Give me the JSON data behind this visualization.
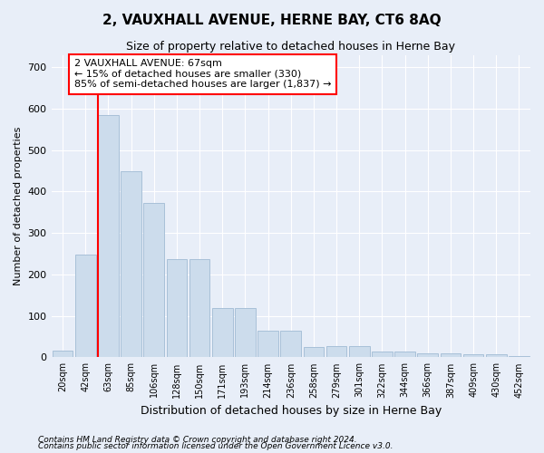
{
  "title": "2, VAUXHALL AVENUE, HERNE BAY, CT6 8AQ",
  "subtitle": "Size of property relative to detached houses in Herne Bay",
  "xlabel": "Distribution of detached houses by size in Herne Bay",
  "ylabel": "Number of detached properties",
  "categories": [
    "20sqm",
    "42sqm",
    "63sqm",
    "85sqm",
    "106sqm",
    "128sqm",
    "150sqm",
    "171sqm",
    "193sqm",
    "214sqm",
    "236sqm",
    "258sqm",
    "279sqm",
    "301sqm",
    "322sqm",
    "344sqm",
    "366sqm",
    "387sqm",
    "409sqm",
    "430sqm",
    "452sqm"
  ],
  "values": [
    17,
    248,
    585,
    450,
    372,
    238,
    238,
    118,
    118,
    65,
    65,
    25,
    28,
    28,
    13,
    13,
    10,
    10,
    8,
    8,
    4
  ],
  "bar_color": "#ccdcec",
  "bar_edge_color": "#a8c0d8",
  "vline_color": "red",
  "vline_index": 2,
  "annotation_text_line1": "2 VAUXHALL AVENUE: 67sqm",
  "annotation_text_line2": "← 15% of detached houses are smaller (330)",
  "annotation_text_line3": "85% of semi-detached houses are larger (1,837) →",
  "annotation_box_facecolor": "white",
  "annotation_box_edgecolor": "red",
  "ylim": [
    0,
    730
  ],
  "yticks": [
    0,
    100,
    200,
    300,
    400,
    500,
    600,
    700
  ],
  "footer1": "Contains HM Land Registry data © Crown copyright and database right 2024.",
  "footer2": "Contains public sector information licensed under the Open Government Licence v3.0.",
  "bg_color": "#e8eef8",
  "title_fontsize": 11,
  "subtitle_fontsize": 9,
  "xlabel_fontsize": 9,
  "ylabel_fontsize": 8,
  "tick_fontsize": 8,
  "xtick_fontsize": 7,
  "annotation_fontsize": 8,
  "footer_fontsize": 6.5
}
